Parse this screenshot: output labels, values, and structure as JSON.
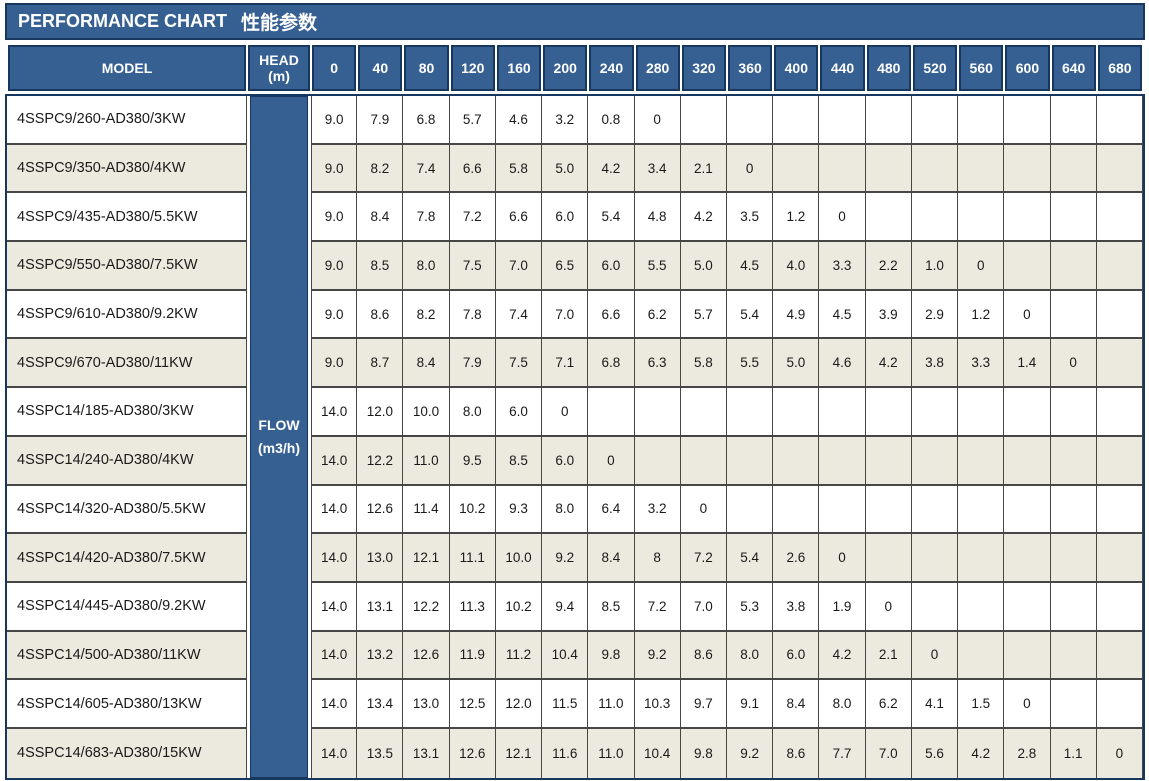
{
  "title": {
    "en": "PERFORMANCE CHART",
    "zh": "性能参数"
  },
  "header": {
    "model": "MODEL",
    "head_line1": "HEAD",
    "head_line2": "(m)",
    "flow_line1": "FLOW",
    "flow_line2": "(m3/h)"
  },
  "colors": {
    "header_blue": "#366092",
    "border_navy": "#17375E",
    "stripe_beige": "#ECE9DE",
    "stripe_white": "#FFFFFF",
    "grid_line": "#464646",
    "title_text": "#FFFFFF",
    "cell_text": "#1A1A1A"
  },
  "chart_data": {
    "type": "table",
    "title": "PERFORMANCE CHART 性能参数",
    "x_label": "FLOW (m3/h)",
    "y_label": "HEAD (m)",
    "flow_m3h": [
      0,
      40,
      80,
      120,
      160,
      200,
      240,
      280,
      320,
      360,
      400,
      440,
      480,
      520,
      560,
      600,
      640,
      680
    ],
    "series": [
      {
        "name": "4SSPC9/260-AD380/3KW",
        "head_m": [
          "9.0",
          "7.9",
          "6.8",
          "5.7",
          "4.6",
          "3.2",
          "0.8",
          "0"
        ]
      },
      {
        "name": "4SSPC9/350-AD380/4KW",
        "head_m": [
          "9.0",
          "8.2",
          "7.4",
          "6.6",
          "5.8",
          "5.0",
          "4.2",
          "3.4",
          "2.1",
          "0"
        ]
      },
      {
        "name": "4SSPC9/435-AD380/5.5KW",
        "head_m": [
          "9.0",
          "8.4",
          "7.8",
          "7.2",
          "6.6",
          "6.0",
          "5.4",
          "4.8",
          "4.2",
          "3.5",
          "1.2",
          "0"
        ]
      },
      {
        "name": "4SSPC9/550-AD380/7.5KW",
        "head_m": [
          "9.0",
          "8.5",
          "8.0",
          "7.5",
          "7.0",
          "6.5",
          "6.0",
          "5.5",
          "5.0",
          "4.5",
          "4.0",
          "3.3",
          "2.2",
          "1.0",
          "0"
        ]
      },
      {
        "name": "4SSPC9/610-AD380/9.2KW",
        "head_m": [
          "9.0",
          "8.6",
          "8.2",
          "7.8",
          "7.4",
          "7.0",
          "6.6",
          "6.2",
          "5.7",
          "5.4",
          "4.9",
          "4.5",
          "3.9",
          "2.9",
          "1.2",
          "0"
        ]
      },
      {
        "name": "4SSPC9/670-AD380/11KW",
        "head_m": [
          "9.0",
          "8.7",
          "8.4",
          "7.9",
          "7.5",
          "7.1",
          "6.8",
          "6.3",
          "5.8",
          "5.5",
          "5.0",
          "4.6",
          "4.2",
          "3.8",
          "3.3",
          "1.4",
          "0"
        ]
      },
      {
        "name": "4SSPC14/185-AD380/3KW",
        "head_m": [
          "14.0",
          "12.0",
          "10.0",
          "8.0",
          "6.0",
          "0"
        ]
      },
      {
        "name": "4SSPC14/240-AD380/4KW",
        "head_m": [
          "14.0",
          "12.2",
          "11.0",
          "9.5",
          "8.5",
          "6.0",
          "0"
        ]
      },
      {
        "name": "4SSPC14/320-AD380/5.5KW",
        "head_m": [
          "14.0",
          "12.6",
          "11.4",
          "10.2",
          "9.3",
          "8.0",
          "6.4",
          "3.2",
          "0"
        ]
      },
      {
        "name": "4SSPC14/420-AD380/7.5KW",
        "head_m": [
          "14.0",
          "13.0",
          "12.1",
          "11.1",
          "10.0",
          "9.2",
          "8.4",
          "8",
          "7.2",
          "5.4",
          "2.6",
          "0"
        ]
      },
      {
        "name": "4SSPC14/445-AD380/9.2KW",
        "head_m": [
          "14.0",
          "13.1",
          "12.2",
          "11.3",
          "10.2",
          "9.4",
          "8.5",
          "7.2",
          "7.0",
          "5.3",
          "3.8",
          "1.9",
          "0"
        ]
      },
      {
        "name": "4SSPC14/500-AD380/11KW",
        "head_m": [
          "14.0",
          "13.2",
          "12.6",
          "11.9",
          "11.2",
          "10.4",
          "9.8",
          "9.2",
          "8.6",
          "8.0",
          "6.0",
          "4.2",
          "2.1",
          "0"
        ]
      },
      {
        "name": "4SSPC14/605-AD380/13KW",
        "head_m": [
          "14.0",
          "13.4",
          "13.0",
          "12.5",
          "12.0",
          "11.5",
          "11.0",
          "10.3",
          "9.7",
          "9.1",
          "8.4",
          "8.0",
          "6.2",
          "4.1",
          "1.5",
          "0"
        ]
      },
      {
        "name": "4SSPC14/683-AD380/15KW",
        "head_m": [
          "14.0",
          "13.5",
          "13.1",
          "12.6",
          "12.1",
          "11.6",
          "11.0",
          "10.4",
          "9.8",
          "9.2",
          "8.6",
          "7.7",
          "7.0",
          "5.6",
          "4.2",
          "2.8",
          "1.1",
          "0"
        ]
      }
    ]
  }
}
